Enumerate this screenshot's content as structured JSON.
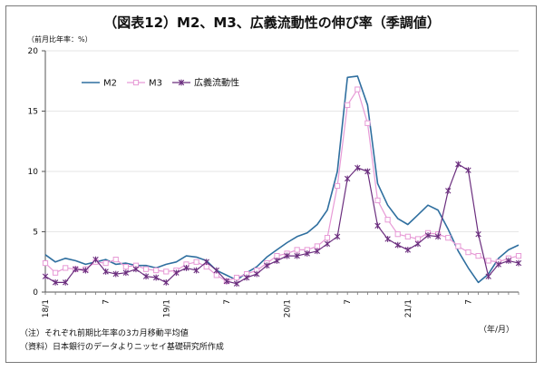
{
  "title": "（図表12）M2、M3、広義流動性の伸び率（季調値）",
  "y_unit_label": "（前月比年率：%）",
  "x_unit_label": "（年/月）",
  "notes": [
    "（注）それぞれ前期比年率の3カ月移動平均値",
    "（資料）日本銀行のデータよりニッセイ基礎研究所作成"
  ],
  "colors": {
    "M2": "#2f6f9f",
    "M3": "#e79ad6",
    "broad": "#6b2e7e"
  },
  "chart_data": {
    "type": "line",
    "title": "（図表12）M2、M3、広義流動性の伸び率（季調値）",
    "xlabel": "（年/月）",
    "ylabel": "（前月比年率：%）",
    "ylim": [
      0,
      20
    ],
    "yticks": [
      0,
      5,
      10,
      15,
      20
    ],
    "xlim": [
      0,
      42
    ],
    "xticks": [
      {
        "index": 0,
        "label": "18/1"
      },
      {
        "index": 6,
        "label": "7"
      },
      {
        "index": 12,
        "label": "19/1"
      },
      {
        "index": 18,
        "label": "7"
      },
      {
        "index": 24,
        "label": "20/1"
      },
      {
        "index": 30,
        "label": "7"
      },
      {
        "index": 36,
        "label": "21/1"
      },
      {
        "index": 42,
        "label": "7"
      }
    ],
    "legend_position": "top-left",
    "series": [
      {
        "name": "M2",
        "marker": "none",
        "values": [
          3.1,
          2.5,
          2.8,
          2.6,
          2.3,
          2.5,
          2.7,
          2.3,
          2.4,
          2.2,
          2.2,
          2.0,
          2.3,
          2.5,
          3.0,
          2.9,
          2.6,
          1.8,
          1.4,
          1.0,
          1.6,
          2.1,
          2.9,
          3.5,
          4.1,
          4.6,
          4.9,
          5.6,
          6.8,
          10.0,
          17.8,
          17.9,
          15.5,
          9.0,
          7.2,
          6.1,
          5.6,
          6.4,
          7.2,
          6.8,
          5.2,
          3.4,
          2.0,
          0.8,
          1.5,
          2.8,
          3.5,
          3.9
        ]
      },
      {
        "name": "M3",
        "marker": "square-open",
        "values": [
          2.4,
          1.6,
          2.0,
          1.9,
          1.9,
          2.5,
          2.4,
          2.7,
          2.1,
          2.2,
          1.9,
          1.8,
          1.7,
          1.8,
          2.3,
          2.5,
          2.1,
          1.4,
          0.9,
          1.2,
          1.5,
          1.8,
          2.4,
          3.0,
          3.2,
          3.5,
          3.5,
          3.8,
          4.5,
          8.8,
          15.5,
          16.8,
          14.0,
          7.6,
          6.0,
          4.8,
          4.6,
          4.4,
          4.9,
          4.8,
          4.5,
          3.8,
          3.3,
          3.0,
          2.6,
          2.5,
          2.8,
          3.0
        ]
      },
      {
        "name": "広義流動性",
        "marker": "star",
        "values": [
          1.3,
          0.8,
          0.8,
          1.9,
          1.8,
          2.7,
          1.7,
          1.5,
          1.6,
          1.9,
          1.3,
          1.2,
          0.8,
          1.6,
          2.0,
          1.8,
          2.5,
          1.8,
          0.9,
          0.7,
          1.2,
          1.5,
          2.2,
          2.6,
          3.0,
          3.0,
          3.2,
          3.4,
          4.0,
          4.6,
          9.4,
          10.3,
          10.0,
          5.5,
          4.4,
          3.9,
          3.5,
          4.0,
          4.7,
          4.6,
          8.4,
          10.6,
          10.1,
          4.8,
          1.3,
          2.3,
          2.6,
          2.4
        ]
      }
    ]
  }
}
